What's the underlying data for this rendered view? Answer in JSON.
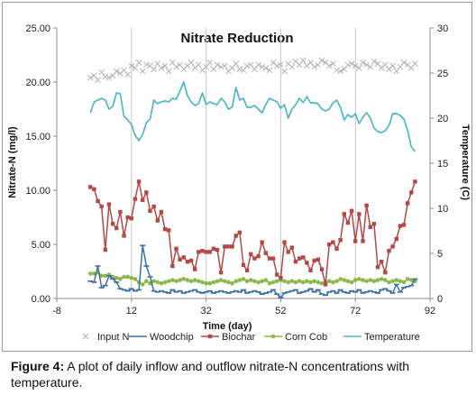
{
  "caption": {
    "label": "Figure 4:",
    "text": " A plot of daily inflow and outflow nitrate-N concentrations with temperature."
  },
  "chart_data": {
    "type": "line",
    "title": "Nitrate Reduction",
    "xlabel": "Time (day)",
    "ylabel": "Nitrate-N (mg/l)",
    "y2label": "Temperature (C)",
    "xlim": [
      -8,
      92
    ],
    "ylim": [
      0,
      25
    ],
    "y2lim": [
      0,
      30
    ],
    "xticks": [
      -8,
      12,
      32,
      52,
      72,
      92
    ],
    "xtick_labels": [
      "-8",
      "12",
      "32",
      "52",
      "72",
      "92"
    ],
    "yticks": [
      0,
      5,
      10,
      15,
      20,
      25
    ],
    "ytick_labels": [
      "0.00",
      "5.00",
      "10.00",
      "15.00",
      "20.00",
      "25.00"
    ],
    "y2ticks": [
      0,
      5,
      10,
      15,
      20,
      25,
      30
    ],
    "y2tick_labels": [
      "0",
      "5",
      "10",
      "15",
      "20",
      "25",
      "30"
    ],
    "grid": "vertical",
    "legend_position": "bottom",
    "series": [
      {
        "name": "Input N",
        "axis": "left",
        "marker": "x",
        "line": false,
        "color": "#b3b3b3",
        "x": [
          1,
          2,
          3,
          4,
          5,
          6,
          7,
          8,
          9,
          10,
          11,
          12,
          13,
          14,
          15,
          16,
          17,
          18,
          19,
          20,
          21,
          22,
          23,
          24,
          25,
          26,
          27,
          28,
          29,
          30,
          31,
          32,
          33,
          34,
          35,
          36,
          37,
          38,
          39,
          40,
          41,
          42,
          43,
          44,
          45,
          46,
          47,
          48,
          49,
          50,
          51,
          52,
          53,
          54,
          55,
          56,
          57,
          58,
          59,
          60,
          61,
          62,
          63,
          64,
          65,
          66,
          67,
          68,
          69,
          70,
          71,
          72,
          73,
          74,
          75,
          76,
          77,
          78,
          79,
          80,
          81,
          82,
          83,
          84,
          85,
          86,
          87,
          88
        ],
        "y": [
          20.4,
          20.6,
          20.2,
          20.9,
          20.5,
          20.4,
          20.6,
          21.0,
          20.8,
          21.1,
          20.7,
          21.5,
          21.3,
          21.8,
          21.0,
          21.6,
          21.5,
          21.2,
          21.7,
          21.3,
          21.5,
          21.0,
          21.8,
          21.4,
          21.6,
          21.2,
          21.5,
          21.8,
          21.3,
          21.6,
          21.1,
          21.4,
          21.8,
          21.2,
          21.6,
          21.4,
          21.5,
          21.0,
          21.3,
          21.7,
          21.2,
          21.1,
          21.5,
          21.6,
          21.2,
          21.6,
          21.4,
          21.3,
          21.1,
          21.8,
          21.5,
          21.6,
          21.0,
          21.7,
          21.4,
          21.9,
          21.6,
          22.0,
          21.5,
          21.8,
          21.4,
          21.6,
          22.0,
          21.8,
          21.5,
          21.7,
          21.1,
          21.0,
          21.2,
          21.6,
          21.7,
          21.5,
          21.3,
          21.8,
          21.6,
          21.4,
          21.9,
          21.7,
          21.3,
          21.6,
          21.2,
          21.5,
          21.0,
          21.4,
          21.8,
          21.6,
          21.3,
          21.7
        ]
      },
      {
        "name": "Woodchip",
        "axis": "left",
        "marker": "dash",
        "line": true,
        "color": "#3d6fa8",
        "x": [
          1,
          2,
          3,
          4,
          5,
          6,
          7,
          8,
          9,
          10,
          11,
          12,
          13,
          14,
          15,
          16,
          17,
          18,
          19,
          20,
          21,
          22,
          23,
          24,
          25,
          26,
          27,
          28,
          29,
          30,
          31,
          32,
          33,
          34,
          35,
          36,
          37,
          38,
          39,
          40,
          41,
          42,
          43,
          44,
          45,
          46,
          47,
          48,
          49,
          50,
          51,
          52,
          53,
          54,
          55,
          56,
          57,
          58,
          59,
          60,
          61,
          62,
          63,
          64,
          65,
          66,
          67,
          68,
          69,
          70,
          71,
          72,
          73,
          74,
          75,
          76,
          77,
          78,
          79,
          80,
          81,
          82,
          83,
          84,
          85,
          86,
          87,
          88
        ],
        "y": [
          1.6,
          1.5,
          3.0,
          1.0,
          1.2,
          2.1,
          1.8,
          1.5,
          0.9,
          0.8,
          0.7,
          0.9,
          0.7,
          0.8,
          4.9,
          3.0,
          2.0,
          0.7,
          0.6,
          0.7,
          0.6,
          0.5,
          0.8,
          0.6,
          0.7,
          0.5,
          0.6,
          0.7,
          0.8,
          0.6,
          0.5,
          0.6,
          0.7,
          0.5,
          0.6,
          0.7,
          0.6,
          0.5,
          0.6,
          0.7,
          0.6,
          0.8,
          0.5,
          0.6,
          0.7,
          0.6,
          0.4,
          0.5,
          0.6,
          0.8,
          0.4,
          0.1,
          0.5,
          0.6,
          0.7,
          0.8,
          0.5,
          0.6,
          0.7,
          0.9,
          0.6,
          0.8,
          0.4,
          0.3,
          0.6,
          0.7,
          0.5,
          0.8,
          0.6,
          0.5,
          0.7,
          0.6,
          0.8,
          0.5,
          0.6,
          0.7,
          0.6,
          0.5,
          0.8,
          0.9,
          0.7,
          0.5,
          1.3,
          0.6,
          1.0,
          1.1,
          1.2,
          1.8
        ]
      },
      {
        "name": "Biochar",
        "axis": "left",
        "marker": "square",
        "line": true,
        "color": "#b24848",
        "x": [
          1,
          2,
          3,
          4,
          5,
          6,
          7,
          8,
          9,
          10,
          11,
          12,
          13,
          14,
          15,
          16,
          17,
          18,
          19,
          20,
          21,
          22,
          23,
          24,
          25,
          26,
          27,
          28,
          29,
          30,
          31,
          32,
          33,
          34,
          35,
          36,
          37,
          38,
          39,
          40,
          41,
          42,
          43,
          44,
          45,
          46,
          47,
          48,
          49,
          50,
          51,
          52,
          53,
          54,
          55,
          56,
          57,
          58,
          59,
          60,
          61,
          62,
          63,
          64,
          65,
          66,
          67,
          68,
          69,
          70,
          71,
          72,
          73,
          74,
          75,
          76,
          77,
          78,
          79,
          80,
          81,
          82,
          83,
          84,
          85,
          86,
          87,
          88
        ],
        "y": [
          10.3,
          10.1,
          9.0,
          8.5,
          4.5,
          8.7,
          6.9,
          6.5,
          8.0,
          5.8,
          7.5,
          7.4,
          9.2,
          10.8,
          9.1,
          9.8,
          8.1,
          8.5,
          7.2,
          8.0,
          6.4,
          6.3,
          3.0,
          4.6,
          3.6,
          3.8,
          3.4,
          3.5,
          2.7,
          4.3,
          4.4,
          4.3,
          4.3,
          4.6,
          4.5,
          2.4,
          4.8,
          4.8,
          4.8,
          5.8,
          6.1,
          3.1,
          2.6,
          4.1,
          3.7,
          3.9,
          5.2,
          4.2,
          3.7,
          3.7,
          2.2,
          1.9,
          5.2,
          4.3,
          4.7,
          3.4,
          3.7,
          3.8,
          3.3,
          2.6,
          3.5,
          3.6,
          2.7,
          1.3,
          5.0,
          5.2,
          4.6,
          5.4,
          7.8,
          7.0,
          8.1,
          5.3,
          7.8,
          5.3,
          8.6,
          6.6,
          6.9,
          2.9,
          3.4,
          2.4,
          4.4,
          4.8,
          5.5,
          6.7,
          6.8,
          8.8,
          9.8,
          10.8
        ]
      },
      {
        "name": "Corn Cob",
        "axis": "left",
        "marker": "circle",
        "line": true,
        "color": "#8ab84a",
        "x": [
          1,
          2,
          3,
          4,
          5,
          6,
          7,
          8,
          9,
          10,
          11,
          12,
          13,
          14,
          15,
          16,
          17,
          18,
          19,
          20,
          21,
          22,
          23,
          24,
          25,
          26,
          27,
          28,
          29,
          30,
          31,
          32,
          33,
          34,
          35,
          36,
          37,
          38,
          39,
          40,
          41,
          42,
          43,
          44,
          45,
          46,
          47,
          48,
          49,
          50,
          51,
          52,
          53,
          54,
          55,
          56,
          57,
          58,
          59,
          60,
          61,
          62,
          63,
          64,
          65,
          66,
          67,
          68,
          69,
          70,
          71,
          72,
          73,
          74,
          75,
          76,
          77,
          78,
          79,
          80,
          81,
          82,
          83,
          84,
          85,
          86,
          87,
          88
        ],
        "y": [
          2.3,
          2.3,
          2.4,
          2.1,
          2.1,
          2.2,
          2.0,
          1.9,
          1.8,
          2.0,
          2.0,
          1.9,
          1.8,
          1.5,
          1.3,
          1.6,
          1.4,
          1.6,
          1.5,
          1.4,
          1.5,
          1.6,
          1.7,
          1.6,
          1.7,
          1.8,
          1.7,
          1.6,
          1.7,
          1.6,
          1.5,
          1.4,
          1.4,
          1.5,
          1.6,
          1.7,
          1.6,
          1.5,
          1.4,
          1.6,
          1.7,
          1.8,
          1.6,
          1.7,
          1.6,
          1.5,
          1.6,
          1.7,
          1.4,
          1.5,
          1.6,
          1.7,
          1.6,
          1.5,
          1.6,
          1.5,
          1.6,
          1.5,
          1.6,
          1.5,
          1.6,
          1.5,
          1.4,
          1.5,
          1.6,
          1.5,
          1.6,
          1.8,
          1.7,
          1.6,
          1.5,
          1.7,
          1.8,
          1.7,
          1.6,
          1.7,
          1.6,
          1.7,
          1.8,
          1.7,
          1.5,
          1.6,
          1.7,
          1.6,
          1.5,
          1.8,
          1.7,
          1.6
        ]
      },
      {
        "name": "Temperature",
        "axis": "right",
        "marker": "none",
        "line": true,
        "color": "#4db8c4",
        "x": [
          1,
          2,
          3,
          4,
          5,
          6,
          7,
          8,
          9,
          10,
          11,
          12,
          13,
          14,
          15,
          16,
          17,
          18,
          19,
          20,
          21,
          22,
          23,
          24,
          25,
          26,
          27,
          28,
          29,
          30,
          31,
          32,
          33,
          34,
          35,
          36,
          37,
          38,
          39,
          40,
          41,
          42,
          43,
          44,
          45,
          46,
          47,
          48,
          49,
          50,
          51,
          52,
          53,
          54,
          55,
          56,
          57,
          58,
          59,
          60,
          61,
          62,
          63,
          64,
          65,
          66,
          67,
          68,
          69,
          70,
          71,
          72,
          73,
          74,
          75,
          76,
          77,
          78,
          79,
          80,
          81,
          82,
          83,
          84,
          85,
          86,
          87,
          88
        ],
        "y": [
          20.6,
          21.8,
          22.0,
          22.2,
          22.0,
          21.0,
          21.3,
          22.8,
          22.7,
          20.2,
          19.8,
          19.3,
          18.1,
          17.5,
          18.2,
          19.5,
          19.9,
          22.0,
          21.6,
          21.8,
          21.9,
          21.8,
          22.2,
          22.1,
          23.0,
          24.0,
          22.5,
          21.8,
          21.4,
          21.6,
          22.8,
          21.5,
          21.8,
          21.6,
          21.5,
          22.2,
          21.8,
          21.0,
          21.2,
          23.4,
          22.0,
          22.2,
          21.2,
          21.2,
          21.4,
          21.0,
          20.6,
          21.5,
          22.2,
          22.0,
          21.8,
          21.1,
          21.5,
          20.0,
          21.0,
          21.5,
          22.2,
          21.7,
          22.4,
          21.7,
          21.7,
          21.6,
          21.0,
          20.8,
          21.0,
          21.7,
          22.0,
          21.2,
          19.8,
          20.4,
          20.1,
          20.5,
          19.4,
          20.1,
          20.6,
          20.0,
          18.9,
          18.5,
          18.4,
          18.6,
          19.2,
          20.5,
          20.5,
          20.3,
          19.9,
          18.6,
          16.8,
          16.3
        ]
      }
    ]
  }
}
